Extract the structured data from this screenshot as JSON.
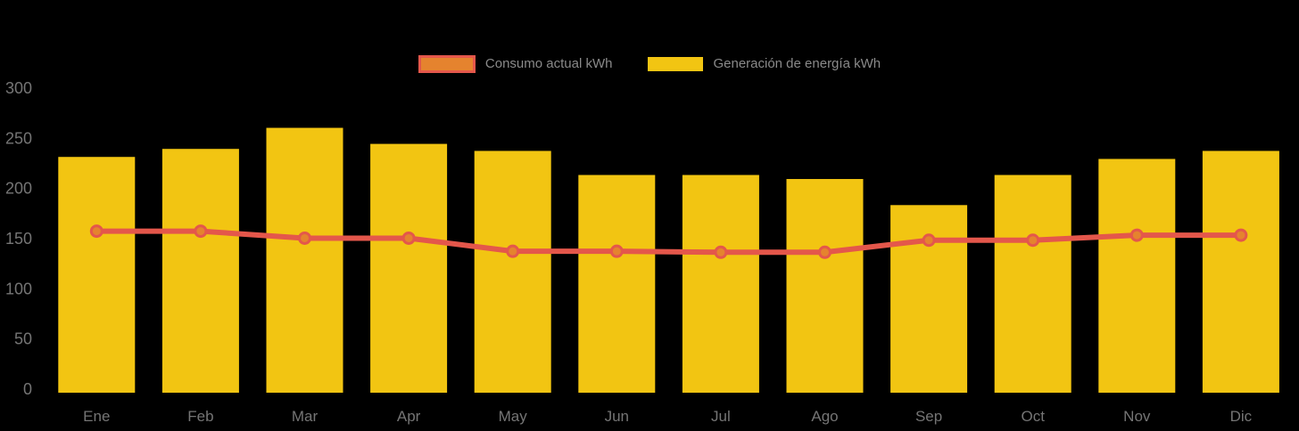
{
  "legend": {
    "items": [
      {
        "label": "Consumo actual kWh",
        "series": "line"
      },
      {
        "label": "Generación de energía kWh",
        "series": "bar"
      }
    ],
    "text_color": "#8A8A8A"
  },
  "axes": {
    "y_tick_labels": [
      "0",
      "50",
      "100",
      "150",
      "200",
      "250",
      "300"
    ],
    "x_tick_labels": [
      "Ene",
      "Feb",
      "Mar",
      "Apr",
      "May",
      "Jun",
      "Jul",
      "Ago",
      "Sep",
      "Oct",
      "Nov",
      "Dic"
    ],
    "text_color": "#757575"
  },
  "colors": {
    "background": "#000000",
    "bar": "#F2C512",
    "line": "#E4574B",
    "marker_fill": "#E5832E"
  },
  "chart_data": {
    "type": "bar+line",
    "categories": [
      "Ene",
      "Feb",
      "Mar",
      "Apr",
      "May",
      "Jun",
      "Jul",
      "Ago",
      "Sep",
      "Oct",
      "Nov",
      "Dic"
    ],
    "series": [
      {
        "name": "Generación de energía kWh",
        "type": "bar",
        "color": "#F2C512",
        "values": [
          235,
          243,
          264,
          248,
          241,
          217,
          217,
          213,
          187,
          217,
          233,
          241
        ]
      },
      {
        "name": "Consumo actual kWh",
        "type": "line",
        "color": "#E4574B",
        "marker_fill": "#E5832E",
        "values": [
          161,
          161,
          154,
          154,
          141,
          141,
          140,
          140,
          152,
          152,
          157,
          157
        ]
      }
    ],
    "title": "",
    "xlabel": "",
    "ylabel": "",
    "ylim": [
      0,
      300
    ],
    "yticks": [
      0,
      50,
      100,
      150,
      200,
      250,
      300
    ],
    "grid": false,
    "legend_position": "top-center"
  }
}
